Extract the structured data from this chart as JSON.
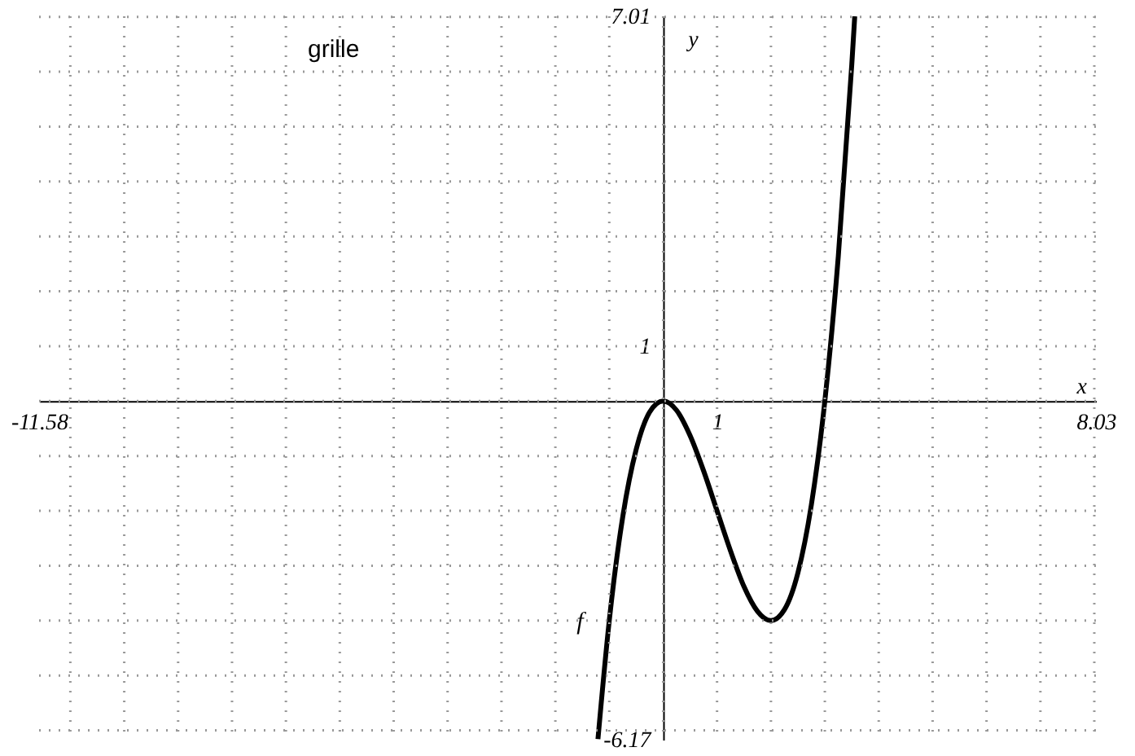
{
  "chart_data": {
    "type": "line",
    "xlabel": "x",
    "ylabel": "y",
    "annotations": [
      "grille"
    ],
    "x": [
      -1.21,
      -1.0,
      -0.75,
      -0.5,
      -0.25,
      0,
      0.25,
      0.5,
      0.75,
      1,
      1.25,
      1.5,
      1.75,
      2,
      2.25,
      2.5,
      2.75,
      3,
      3.25,
      3.5,
      3.555
    ],
    "series": [
      {
        "name": "f",
        "color": "#000000",
        "values": [
          -6.16,
          -4,
          -2.11,
          -0.88,
          -0.2,
          0,
          -0.17,
          -0.63,
          -1.27,
          -2,
          -2.73,
          -3.38,
          -3.83,
          -4,
          -3.8,
          -3.13,
          -1.89,
          0,
          2.64,
          6.13,
          7.01
        ]
      }
    ],
    "xlim": [
      -11.58,
      8.03
    ],
    "ylim": [
      -6.17,
      7.01
    ],
    "xticks": [
      -11.58,
      1,
      8.03
    ],
    "yticks": [
      -6.17,
      1,
      7.01
    ],
    "grid": true,
    "marker": "none",
    "line_style": "solid"
  }
}
